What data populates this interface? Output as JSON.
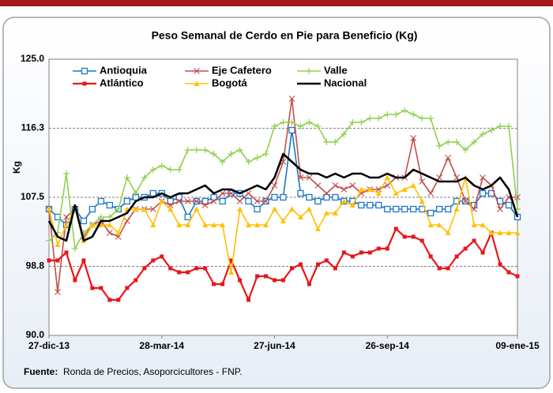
{
  "chart_data": {
    "type": "line",
    "title": "Peso Semanal de Cerdo en Pie para Beneficio (Kg)",
    "y_label": "Kg",
    "source_label": "Fuente:",
    "source": "Ronda de Precios, Asoporcicultores - FNP.",
    "categories": [
      "27-dic-13",
      null,
      null,
      null,
      null,
      null,
      null,
      null,
      null,
      null,
      null,
      null,
      null,
      "28-mar-14",
      null,
      null,
      null,
      null,
      null,
      null,
      null,
      null,
      null,
      null,
      null,
      null,
      "27-jun-14",
      null,
      null,
      null,
      null,
      null,
      null,
      null,
      null,
      null,
      null,
      null,
      null,
      "26-sep-14",
      null,
      null,
      null,
      null,
      null,
      null,
      null,
      null,
      null,
      null,
      null,
      null,
      null,
      null,
      "09-ene-15"
    ],
    "ylim": [
      90,
      125
    ],
    "yticks": [
      {
        "value": 90,
        "label": "90.0"
      },
      {
        "value": 98.75,
        "label": "98.8"
      },
      {
        "value": 107.5,
        "label": "107.5"
      },
      {
        "value": 116.25,
        "label": "116.3"
      },
      {
        "value": 125,
        "label": "125.0"
      }
    ],
    "grid": true,
    "legend": "top-left",
    "series": [
      {
        "name": "Antioquia",
        "color": "#1f77c8",
        "marker": "square",
        "values": [
          106,
          105,
          104,
          106,
          104.5,
          106,
          107,
          106.5,
          106,
          107,
          107.5,
          107.5,
          108,
          108,
          107,
          107.5,
          105,
          107,
          107,
          107.5,
          107,
          108,
          108,
          107,
          106,
          107,
          107.5,
          107.5,
          116,
          108,
          107.5,
          107,
          107.5,
          107.5,
          107,
          107,
          106.5,
          106.5,
          106.5,
          106,
          106,
          106,
          106,
          106,
          105.5,
          106,
          106,
          107,
          107,
          106.5,
          108,
          108,
          107,
          106.5,
          105
        ]
      },
      {
        "name": "Eje Cafetero",
        "color": "#c0504d",
        "marker": "x",
        "values": [
          106,
          95.5,
          105,
          106,
          102.5,
          104,
          104.5,
          103,
          102.5,
          104.5,
          106,
          106,
          106,
          107,
          106.5,
          107,
          107,
          107,
          106.5,
          107,
          108,
          108,
          107,
          108,
          107,
          107,
          109,
          112,
          120,
          110,
          110,
          109,
          108,
          109,
          108.5,
          109,
          108,
          108.5,
          108.5,
          109,
          110,
          110,
          115,
          109.5,
          108,
          110,
          112.5,
          110,
          107,
          106,
          110,
          109,
          106,
          107.5,
          107.5
        ]
      },
      {
        "name": "Valle",
        "color": "#92d050",
        "marker": "plus",
        "values": [
          102,
          103,
          110.5,
          101,
          103,
          104,
          105,
          105,
          106,
          110,
          108,
          110,
          111,
          111.5,
          111,
          111,
          113.5,
          113.5,
          113.5,
          113,
          112,
          113,
          113.5,
          112,
          112.5,
          113,
          116.5,
          117,
          117,
          116.5,
          117,
          116.5,
          114.5,
          114.5,
          115.5,
          117,
          117,
          117.5,
          117.5,
          118,
          118,
          118.5,
          118,
          117.5,
          117.5,
          114,
          114.5,
          114.5,
          113.5,
          114.5,
          115.5,
          116,
          116.5,
          116.5,
          106
        ]
      },
      {
        "name": "Atlántico",
        "color": "#e8161b",
        "marker": "smallsquare",
        "values": [
          99.5,
          99.5,
          100.5,
          97,
          99.5,
          96,
          96,
          94.5,
          94.5,
          96,
          97,
          98.5,
          99.5,
          100,
          98.5,
          98,
          98,
          98.5,
          98.5,
          96.5,
          96.5,
          99.5,
          97,
          94.5,
          97.5,
          97.5,
          97,
          97,
          98.5,
          99,
          96.5,
          99,
          99.5,
          98.5,
          100.5,
          100,
          100.5,
          100.5,
          101,
          101,
          103.5,
          102.5,
          102.5,
          102,
          100,
          98.5,
          98.5,
          100,
          101,
          102,
          100.5,
          103,
          99,
          98,
          97.5
        ]
      },
      {
        "name": "Bogotá",
        "color": "#ffc000",
        "marker": "triangle",
        "values": [
          106,
          101.5,
          104,
          106,
          102,
          104,
          104,
          104,
          103,
          106,
          106,
          106,
          104,
          107,
          106,
          104,
          104,
          106,
          104,
          104,
          104,
          98,
          106,
          104,
          104,
          104,
          106,
          104.5,
          106,
          105,
          106,
          103.5,
          105.5,
          105.5,
          107,
          106.5,
          108.5,
          108.5,
          108,
          110,
          108,
          108.5,
          109,
          107,
          104,
          104,
          103,
          106,
          110,
          104,
          104,
          103,
          103,
          103,
          103
        ]
      },
      {
        "name": "Nacional",
        "color": "#000000",
        "marker": "none",
        "values": [
          104.5,
          102.5,
          102,
          106.5,
          102,
          102.5,
          104.5,
          104.5,
          105,
          105.5,
          107,
          107.5,
          107.5,
          108,
          107.5,
          108,
          108,
          108.5,
          109,
          108,
          108.5,
          108.5,
          108,
          108.5,
          109,
          108.5,
          110,
          113,
          112,
          111,
          110.5,
          110.5,
          110,
          110.5,
          110,
          110.5,
          110.5,
          110,
          110,
          110.5,
          110,
          110,
          111,
          110.5,
          110,
          109.5,
          109.5,
          109.5,
          110,
          109,
          108.5,
          109,
          110,
          108.5,
          105
        ]
      }
    ]
  }
}
